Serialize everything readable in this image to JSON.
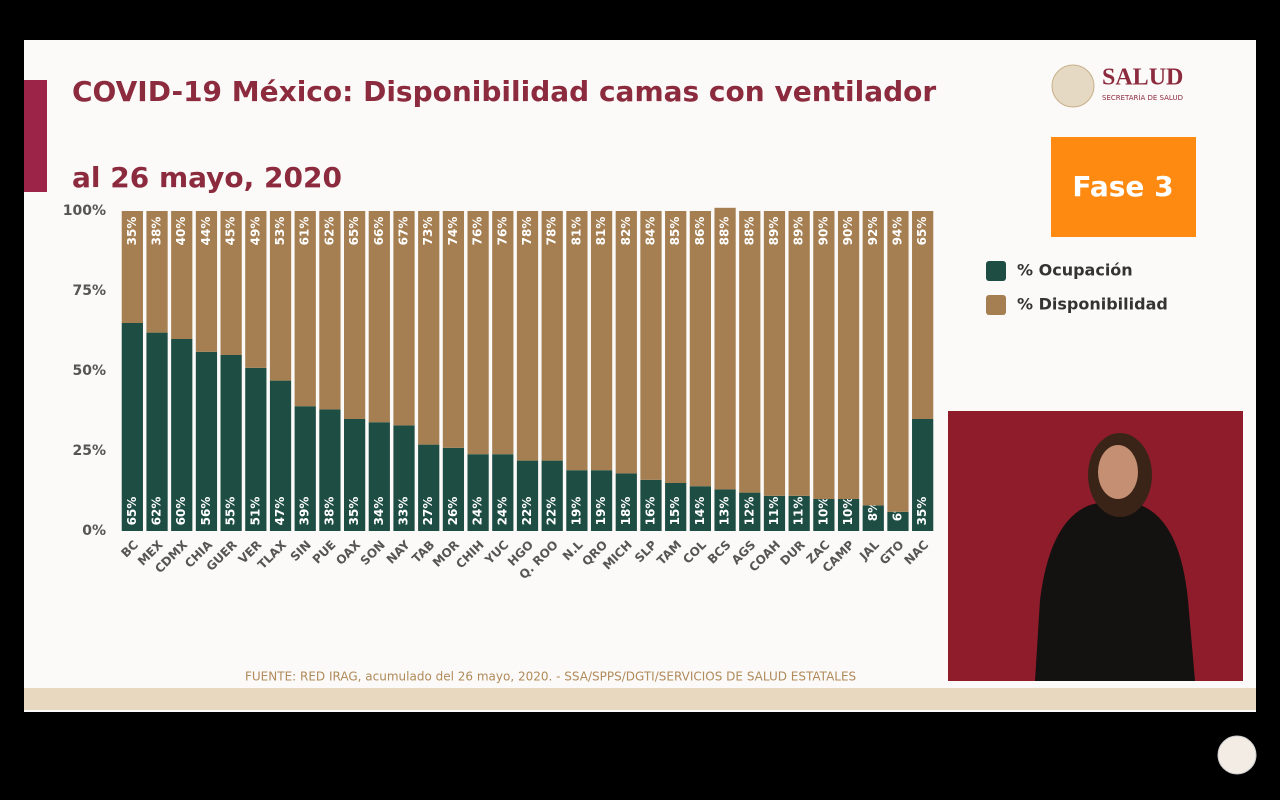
{
  "chart_data": {
    "type": "stacked_bar",
    "title": "COVID-19 México: Disponibilidad camas con ventilador",
    "subtitle": "al 26 mayo, 2020",
    "source": "FUENTE: RED IRAG, acumulado del 26 mayo, 2020. -  SSA/SPPS/DGTI/SERVICIOS DE SALUD ESTATALES",
    "categories": [
      "BC",
      "MEX",
      "CDMX",
      "CHIA",
      "GUER",
      "VER",
      "TLAX",
      "SIN",
      "PUE",
      "OAX",
      "SON",
      "NAY",
      "TAB",
      "MOR",
      "CHIH",
      "YUC",
      "HGO",
      "Q. ROO",
      "N.L",
      "QRO",
      "MICH",
      "SLP",
      "TAM",
      "COL",
      "BCS",
      "AGS",
      "COAH",
      "DUR",
      "ZAC",
      "CAMP",
      "JAL",
      "GTO",
      "NAC"
    ],
    "series": [
      {
        "name": "% Ocupación",
        "color": "#1e4d44",
        "values": [
          65,
          62,
          60,
          56,
          55,
          51,
          47,
          39,
          38,
          35,
          34,
          33,
          27,
          26,
          24,
          24,
          22,
          22,
          19,
          19,
          18,
          16,
          15,
          14,
          13,
          12,
          11,
          11,
          10,
          10,
          8,
          6,
          35
        ],
        "value_labels": [
          "65%",
          "62%",
          "60%",
          "56%",
          "55%",
          "51%",
          "47%",
          "39%",
          "38%",
          "35%",
          "34%",
          "33%",
          "27%",
          "26%",
          "24%",
          "24%",
          "22%",
          "22%",
          "19%",
          "19%",
          "18%",
          "16%",
          "15%",
          "14%",
          "13%",
          "12%",
          "11%",
          "11%",
          "10%",
          "10%",
          "8%",
          "6%",
          "35%"
        ]
      },
      {
        "name": "% Disponibilidad",
        "color": "#a57f52",
        "values": [
          35,
          38,
          40,
          44,
          45,
          49,
          53,
          61,
          62,
          65,
          66,
          67,
          73,
          74,
          76,
          76,
          78,
          78,
          81,
          81,
          82,
          84,
          85,
          86,
          88,
          88,
          89,
          89,
          90,
          90,
          92,
          94,
          65
        ],
        "value_labels": [
          "35%",
          "38%",
          "40%",
          "44%",
          "45%",
          "49%",
          "53%",
          "61%",
          "62%",
          "65%",
          "66%",
          "67%",
          "73%",
          "74%",
          "76%",
          "76%",
          "78%",
          "78%",
          "81%",
          "81%",
          "82%",
          "84%",
          "85%",
          "86%",
          "88%",
          "88%",
          "89%",
          "89%",
          "90%",
          "90%",
          "92%",
          "94%",
          "65%"
        ]
      }
    ],
    "ylim": [
      0,
      100
    ],
    "yticks": [
      {
        "value": 0,
        "label": "0%"
      },
      {
        "value": 25,
        "label": "25%"
      },
      {
        "value": 50,
        "label": "50%"
      },
      {
        "value": 75,
        "label": "75%"
      },
      {
        "value": 100,
        "label": "100%"
      }
    ],
    "grid": false
  },
  "logo": {
    "title": "SALUD",
    "subtitle": "SECRETARÍA DE SALUD"
  },
  "badge": "Fase 3"
}
